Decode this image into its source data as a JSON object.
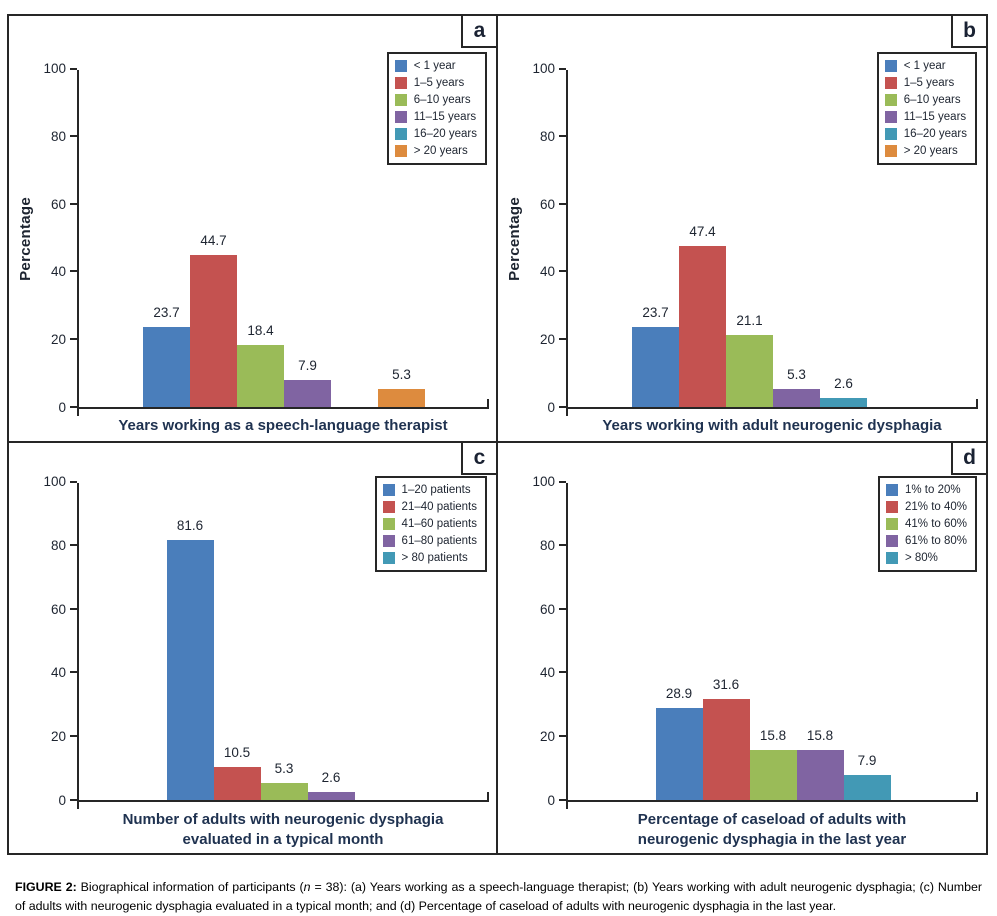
{
  "caption": {
    "label": "FIGURE 2:",
    "part1": " Biographical information of participants (",
    "n_symbol": "n",
    "part2": " = 38): (a) Years working as a speech-language therapist; (b) Years working with adult neurogenic dysphagia; (c) Number of adults with neurogenic dysphagia evaluated in a typical month; and (d) Percentage of caseload of adults with neurogenic dysphagia in the last year."
  },
  "palette": {
    "blue": "#4A7EBB",
    "red": "#C45250",
    "green": "#9ABB58",
    "purple": "#8064A2",
    "teal": "#4299B5",
    "orange": "#DD8B3E",
    "axis": "#262626",
    "text": "#1d2430",
    "title_text": "#1f3250"
  },
  "chart_data": [
    {
      "type": "bar",
      "panel_label": "a",
      "title": "Years working as a speech-language therapist",
      "ylabel": "Percentage",
      "ylim": [
        0,
        100
      ],
      "yticks": [
        0,
        20,
        40,
        60,
        80,
        100
      ],
      "legend_position": "top-right",
      "grid": false,
      "categories": [
        "< 1 year",
        "1–5 years",
        "6–10 years",
        "11–15 years",
        "16–20 years",
        "> 20 years"
      ],
      "values": [
        23.7,
        44.7,
        18.4,
        7.9,
        0,
        5.3
      ],
      "bar_colors": [
        "#4A7EBB",
        "#C45250",
        "#9ABB58",
        "#8064A2",
        "#4299B5",
        "#DD8B3E"
      ]
    },
    {
      "type": "bar",
      "panel_label": "b",
      "title": "Years working with adult neurogenic dysphagia",
      "ylabel": "Percentage",
      "ylim": [
        0,
        100
      ],
      "yticks": [
        0,
        20,
        40,
        60,
        80,
        100
      ],
      "legend_position": "top-right",
      "grid": false,
      "categories": [
        "< 1 year",
        "1–5 years",
        "6–10 years",
        "11–15 years",
        "16–20 years",
        "> 20 years"
      ],
      "values": [
        23.7,
        47.4,
        21.1,
        5.3,
        2.6,
        0
      ],
      "bar_colors": [
        "#4A7EBB",
        "#C45250",
        "#9ABB58",
        "#8064A2",
        "#4299B5",
        "#DD8B3E"
      ]
    },
    {
      "type": "bar",
      "panel_label": "c",
      "title": "Number of adults with neurogenic dysphagia evaluated in a typical month",
      "ylabel": "",
      "ylim": [
        0,
        100
      ],
      "yticks": [
        0,
        20,
        40,
        60,
        80,
        100
      ],
      "legend_position": "top-right",
      "grid": false,
      "categories": [
        "1–20 patients",
        "21–40 patients",
        "41–60 patients",
        "61–80 patients",
        "> 80 patients"
      ],
      "values": [
        81.6,
        10.5,
        5.3,
        2.6,
        0
      ],
      "bar_colors": [
        "#4A7EBB",
        "#C45250",
        "#9ABB58",
        "#8064A2",
        "#4299B5"
      ]
    },
    {
      "type": "bar",
      "panel_label": "d",
      "title": "Percentage of caseload of adults with neurogenic dysphagia in the last year",
      "ylabel": "",
      "ylim": [
        0,
        100
      ],
      "yticks": [
        0,
        20,
        40,
        60,
        80,
        100
      ],
      "legend_position": "top-right",
      "grid": false,
      "categories": [
        "1% to 20%",
        "21% to 40%",
        "41% to 60%",
        "61% to 80%",
        "> 80%"
      ],
      "values": [
        28.9,
        31.6,
        15.8,
        15.8,
        7.9
      ],
      "bar_colors": [
        "#4A7EBB",
        "#C45250",
        "#9ABB58",
        "#8064A2",
        "#4299B5"
      ]
    }
  ]
}
